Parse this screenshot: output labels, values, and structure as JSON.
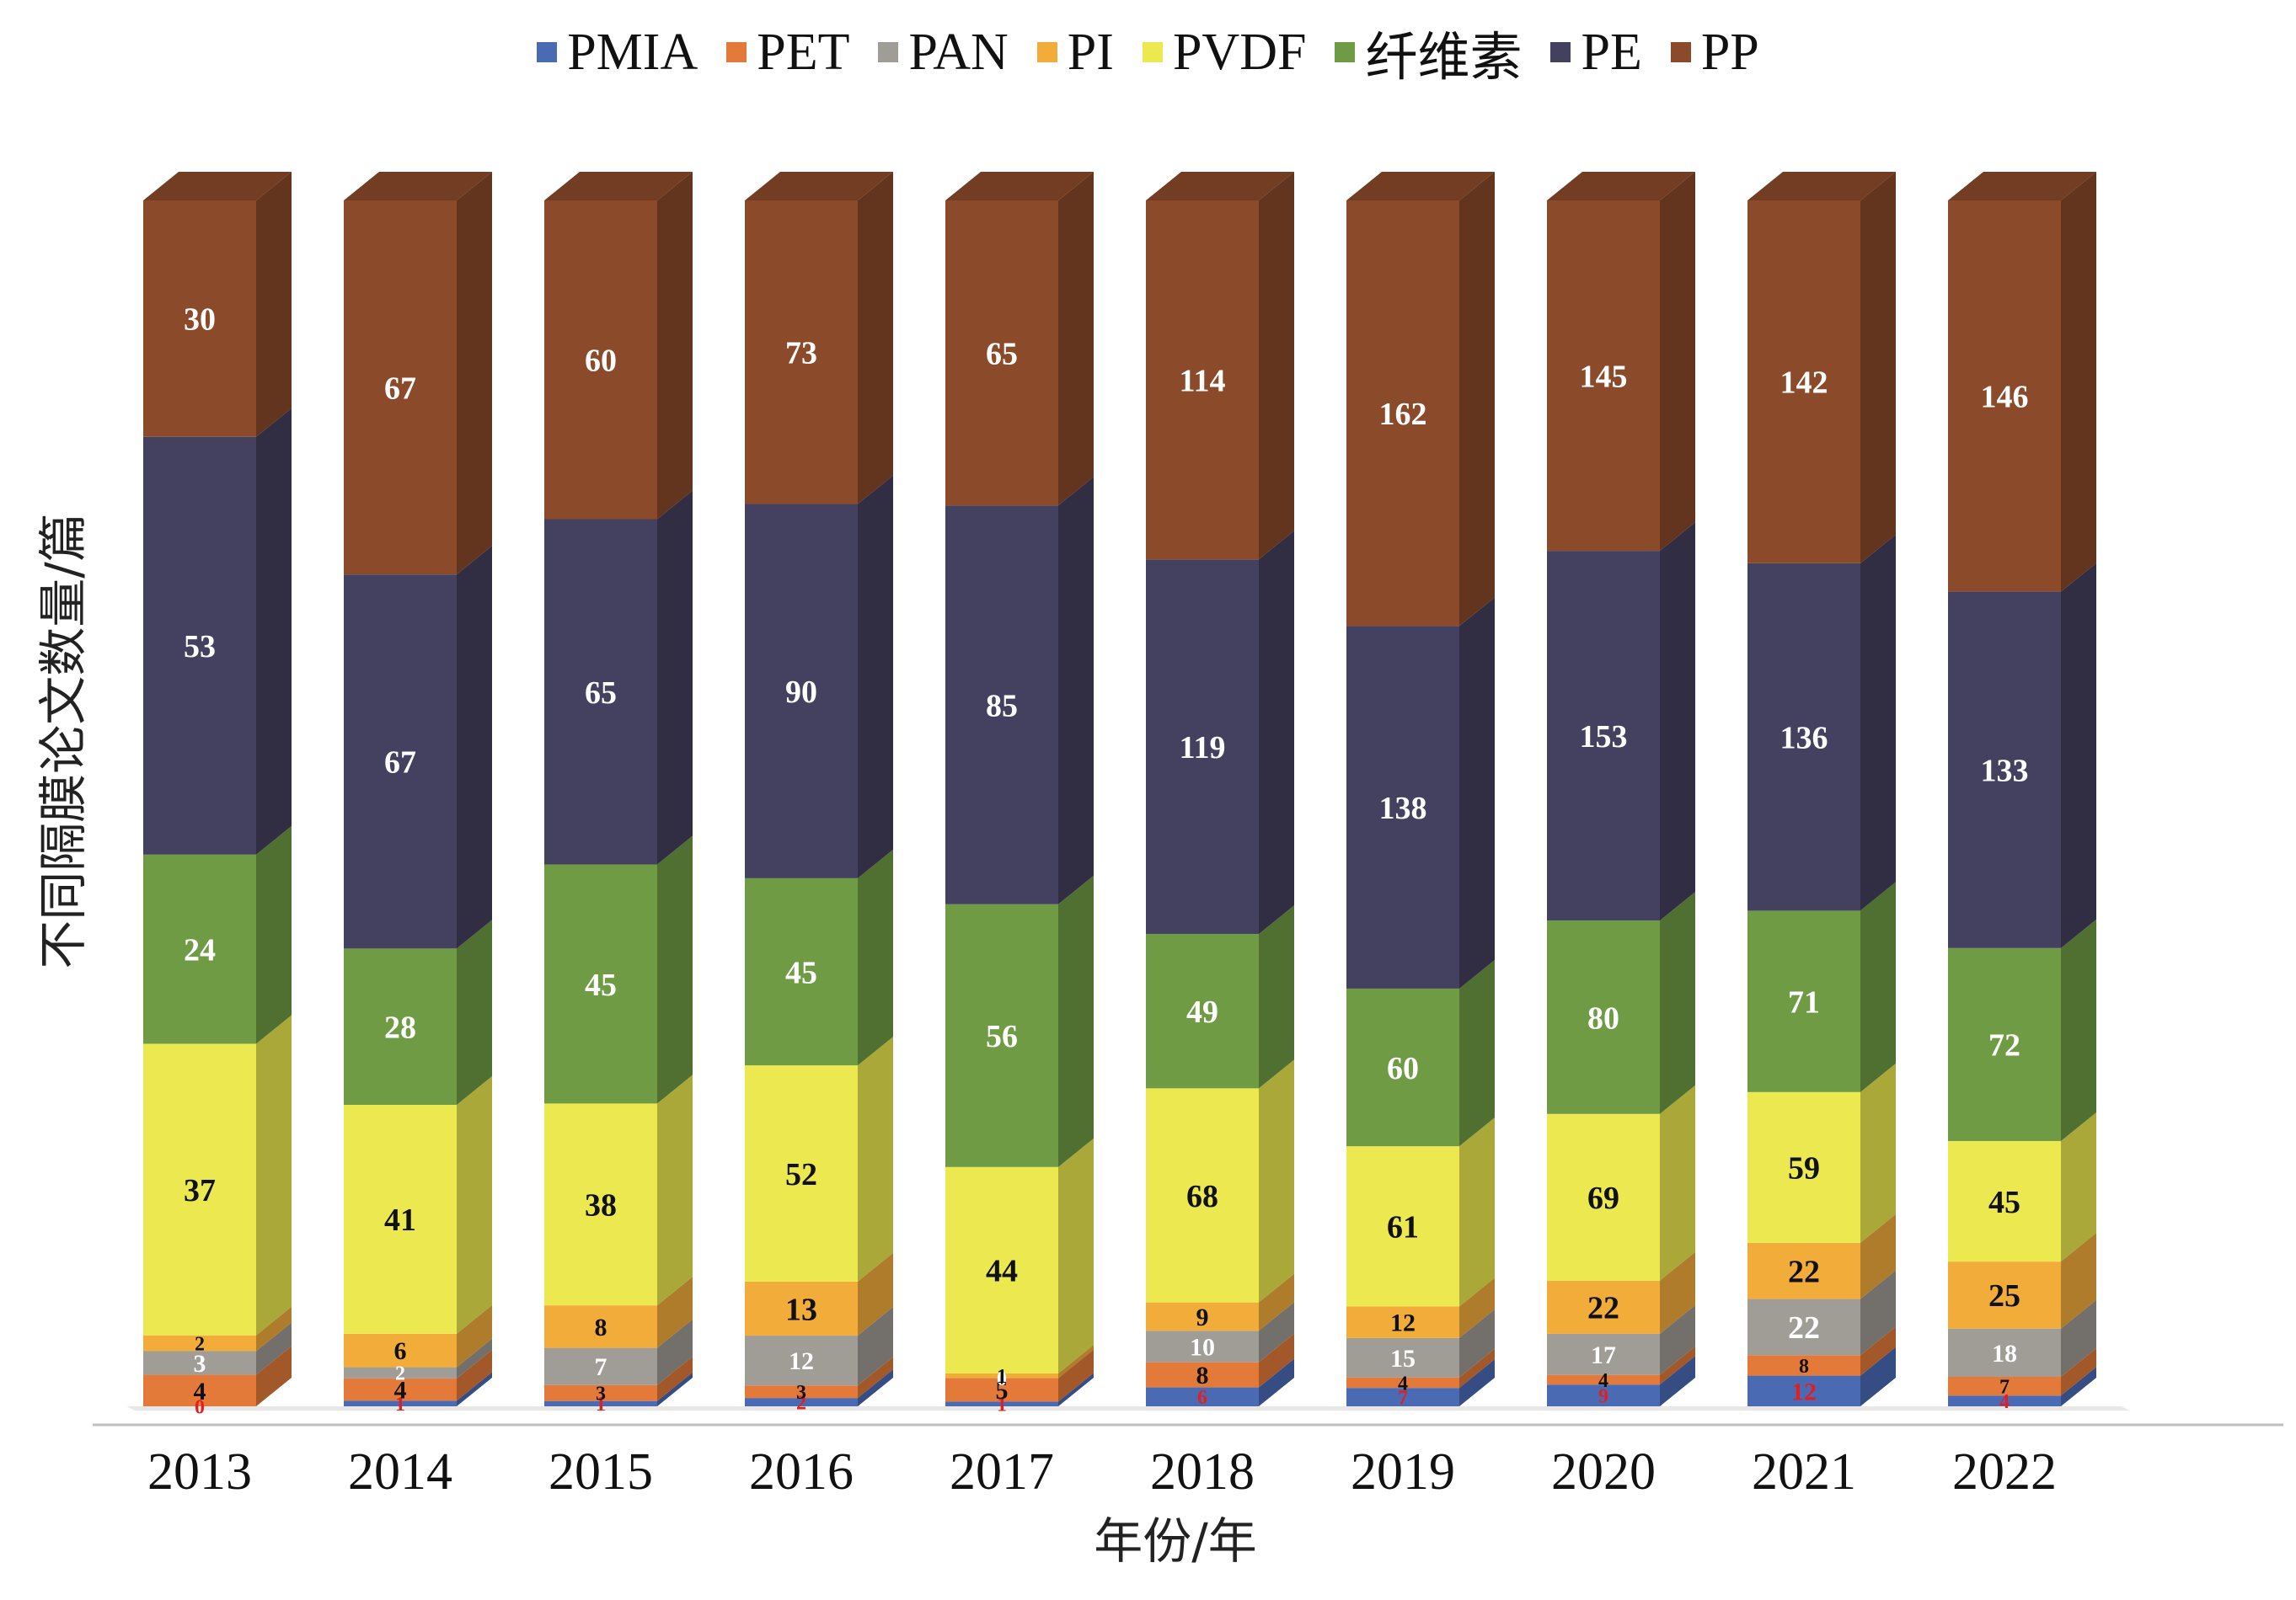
{
  "chart_data": {
    "type": "bar",
    "stacked": true,
    "xlabel": "年份/年",
    "ylabel": "不同隔膜论文数量/篇",
    "categories": [
      "2013",
      "2014",
      "2015",
      "2016",
      "2017",
      "2018",
      "2019",
      "2020",
      "2021",
      "2022"
    ],
    "legend_position": "top",
    "grid": false,
    "series": [
      {
        "name": "PMIA",
        "color": "#4a6bb4",
        "label_color": "#e02020",
        "values": [
          0,
          1,
          1,
          2,
          1,
          6,
          7,
          9,
          12,
          4
        ]
      },
      {
        "name": "PET",
        "color": "#e37a3a",
        "label_color": "#111111",
        "values": [
          4,
          4,
          3,
          3,
          5,
          8,
          4,
          4,
          8,
          7
        ]
      },
      {
        "name": "PAN",
        "color": "#a09c96",
        "label_color": "#ffffff",
        "values": [
          3,
          2,
          7,
          12,
          0,
          10,
          15,
          17,
          22,
          18
        ]
      },
      {
        "name": "PI",
        "color": "#f2ac3a",
        "label_color": "#111111",
        "values": [
          2,
          6,
          8,
          13,
          1,
          9,
          12,
          22,
          22,
          25
        ]
      },
      {
        "name": "PVDF",
        "color": "#ebe94f",
        "label_color": "#111111",
        "values": [
          37,
          41,
          38,
          52,
          44,
          68,
          61,
          69,
          59,
          45
        ]
      },
      {
        "name": "纤维素",
        "color": "#6f9b45",
        "label_color": "#ffffff",
        "values": [
          24,
          28,
          45,
          45,
          56,
          49,
          60,
          80,
          71,
          72
        ]
      },
      {
        "name": "PE",
        "color": "#44405f",
        "label_color": "#ffffff",
        "values": [
          53,
          67,
          65,
          90,
          85,
          119,
          138,
          153,
          136,
          133
        ]
      },
      {
        "name": "PP",
        "color": "#8b4a2a",
        "label_color": "#ffffff",
        "values": [
          30,
          67,
          60,
          73,
          65,
          114,
          162,
          145,
          142,
          146
        ]
      }
    ]
  }
}
